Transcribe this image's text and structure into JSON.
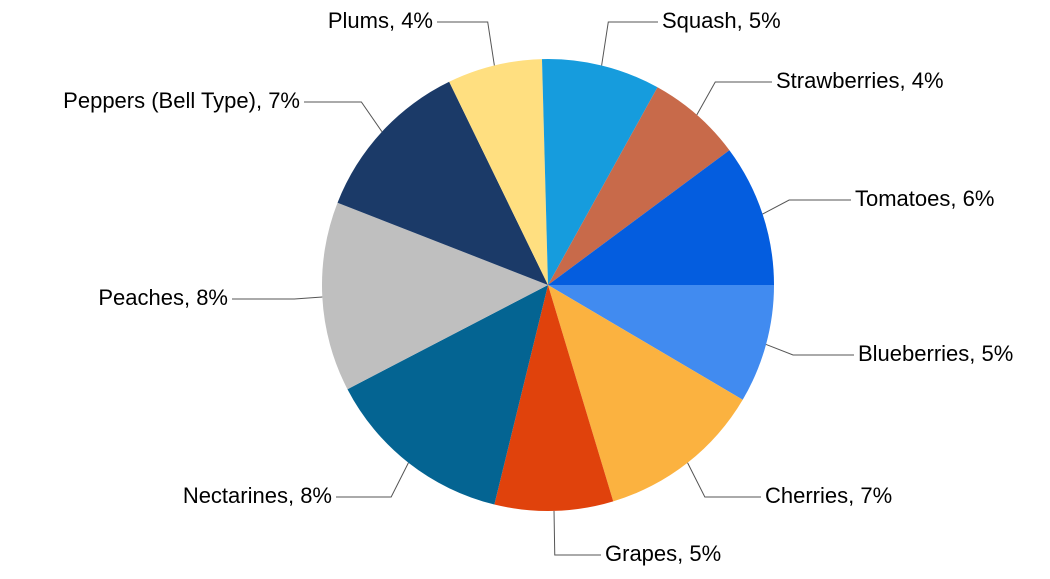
{
  "chart_data": {
    "type": "pie",
    "values": [
      5,
      7,
      5,
      8,
      8,
      7,
      4,
      5,
      4,
      6
    ],
    "value_labels": [
      "Blueberries, 5%",
      "Cherries, 7%",
      "Grapes, 5%",
      "Nectarines, 8%",
      "Peaches, 8%",
      "Peppers (Bell Type), 7%",
      "Plums, 4%",
      "Squash, 5%",
      "Strawberries, 4%",
      "Tomatoes, 6%"
    ],
    "colors": [
      "#418bf0",
      "#fbb240",
      "#e0420c",
      "#046492",
      "#bfbfbf",
      "#1b3a68",
      "#ffdf80",
      "#169cdd",
      "#c86a4a",
      "#045ddf"
    ]
  }
}
